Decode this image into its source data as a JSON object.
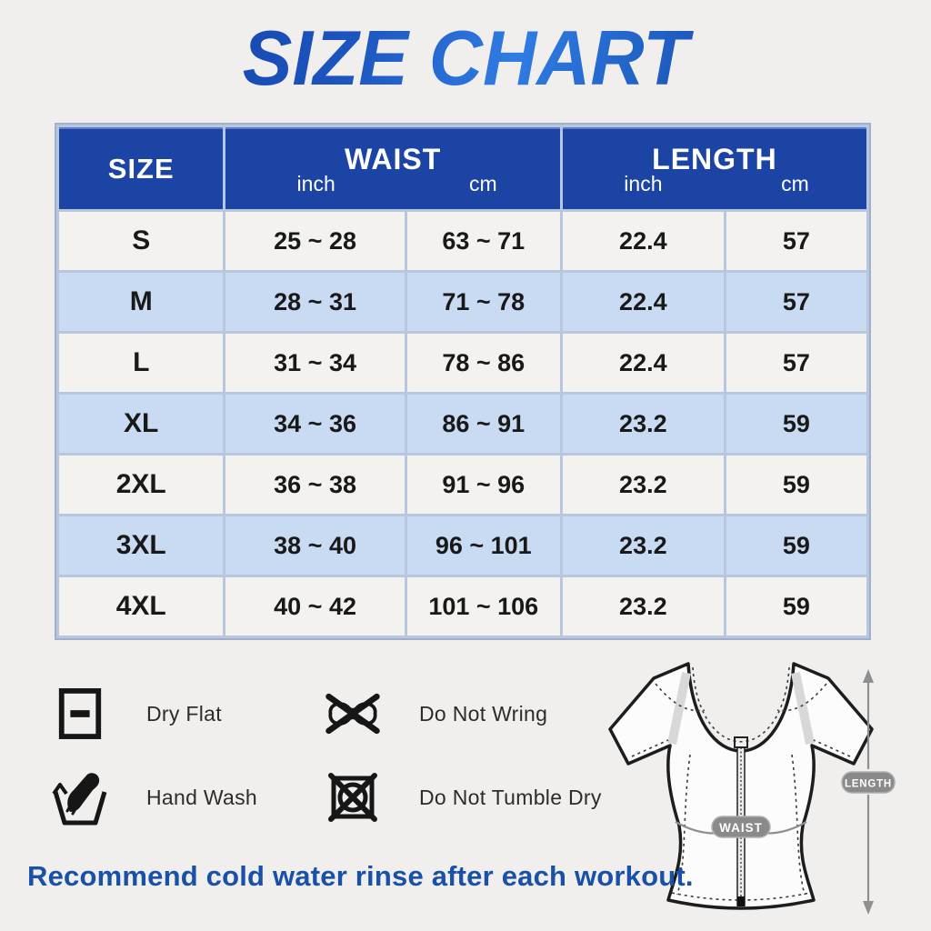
{
  "title": "SIZE CHART",
  "table": {
    "header": {
      "size": "SIZE",
      "waist": "WAIST",
      "length": "LENGTH",
      "units": {
        "waist_inch": "inch",
        "waist_cm": "cm",
        "length_inch": "inch",
        "length_cm": "cm"
      }
    },
    "rows": [
      {
        "size": "S",
        "waist_inch": "25 ~ 28",
        "waist_cm": "63 ~ 71",
        "length_inch": "22.4",
        "length_cm": "57"
      },
      {
        "size": "M",
        "waist_inch": "28 ~ 31",
        "waist_cm": "71 ~ 78",
        "length_inch": "22.4",
        "length_cm": "57"
      },
      {
        "size": "L",
        "waist_inch": "31 ~ 34",
        "waist_cm": "78 ~ 86",
        "length_inch": "22.4",
        "length_cm": "57"
      },
      {
        "size": "XL",
        "waist_inch": "34 ~ 36",
        "waist_cm": "86 ~ 91",
        "length_inch": "23.2",
        "length_cm": "59"
      },
      {
        "size": "2XL",
        "waist_inch": "36 ~ 38",
        "waist_cm": "91 ~ 96",
        "length_inch": "23.2",
        "length_cm": "59"
      },
      {
        "size": "3XL",
        "waist_inch": "38 ~ 40",
        "waist_cm": "96 ~ 101",
        "length_inch": "23.2",
        "length_cm": "59"
      },
      {
        "size": "4XL",
        "waist_inch": "40 ~ 42",
        "waist_cm": "101 ~ 106",
        "length_inch": "23.2",
        "length_cm": "59"
      }
    ]
  },
  "care": {
    "items": [
      {
        "icon": "dry-flat-icon",
        "label": "Dry Flat"
      },
      {
        "icon": "do-not-wring-icon",
        "label": "Do Not Wring"
      },
      {
        "icon": "hand-wash-icon",
        "label": "Hand Wash"
      },
      {
        "icon": "do-not-tumble-dry-icon",
        "label": "Do Not Tumble Dry"
      }
    ]
  },
  "garment": {
    "waist_label": "WAIST",
    "length_label": "LENGTH"
  },
  "footer_note": "Recommend cold water rinse after each workout.",
  "colors": {
    "header_blue": "#1c44a4",
    "row_alt_blue": "#c9daf3",
    "row_base": "#f4f2ef",
    "grid_line": "#b9c6e0",
    "title_gradient_dark": "#0c3c9e",
    "title_gradient_light": "#2f7ce2",
    "note_blue": "#1950a8",
    "badge_gray": "#8a8a8a",
    "page_background": "#f0efed"
  },
  "chart_data": {
    "type": "table",
    "title": "SIZE CHART",
    "columns": [
      "SIZE",
      "WAIST inch",
      "WAIST cm",
      "LENGTH inch",
      "LENGTH cm"
    ],
    "rows": [
      [
        "S",
        "25 ~ 28",
        "63 ~ 71",
        "22.4",
        "57"
      ],
      [
        "M",
        "28 ~ 31",
        "71 ~ 78",
        "22.4",
        "57"
      ],
      [
        "L",
        "31 ~ 34",
        "78 ~ 86",
        "22.4",
        "57"
      ],
      [
        "XL",
        "34 ~ 36",
        "86 ~ 91",
        "23.2",
        "59"
      ],
      [
        "2XL",
        "36 ~ 38",
        "91 ~ 96",
        "23.2",
        "59"
      ],
      [
        "3XL",
        "38 ~ 40",
        "96 ~ 101",
        "23.2",
        "59"
      ],
      [
        "4XL",
        "40 ~ 42",
        "101 ~ 106",
        "23.2",
        "59"
      ]
    ]
  }
}
